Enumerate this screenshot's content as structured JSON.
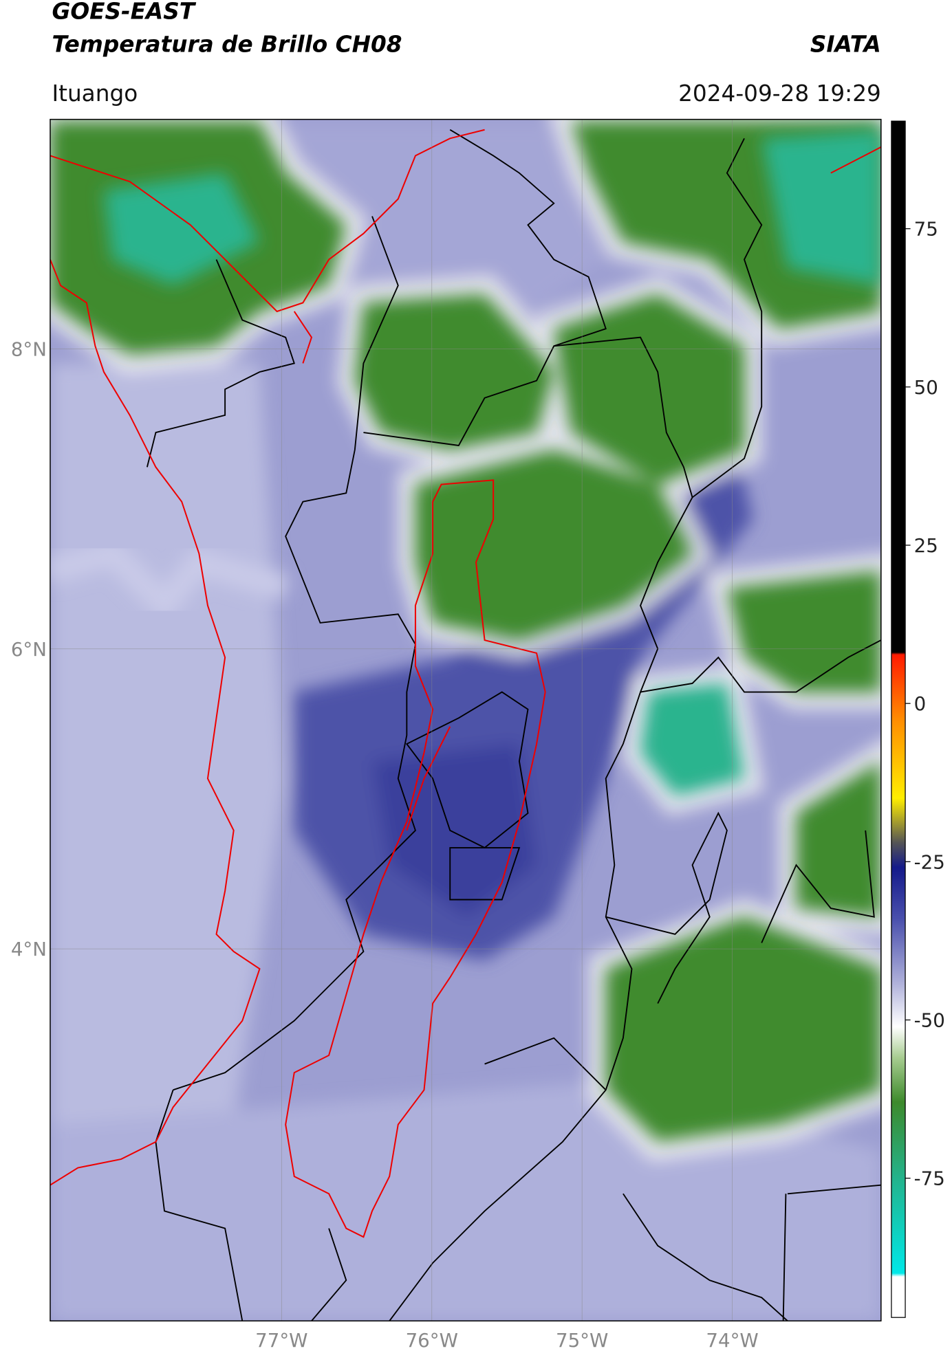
{
  "chart_data": {
    "type": "map",
    "title": "GOES-EAST",
    "subtitle": "Temperatura de Brillo CH08",
    "source": "SIATA",
    "region": "Ituango",
    "timestamp": "2024-09-28 19:29",
    "xlim": [
      -78.54,
      -73.01
    ],
    "ylim": [
      1.52,
      9.53
    ],
    "xticks": [
      {
        "value": -77,
        "label": "77°W"
      },
      {
        "value": -76,
        "label": "76°W"
      },
      {
        "value": -75,
        "label": "75°W"
      },
      {
        "value": -74,
        "label": "74°W"
      }
    ],
    "yticks": [
      {
        "value": 8,
        "label": "8°N"
      },
      {
        "value": 6,
        "label": "6°N"
      },
      {
        "value": 4,
        "label": "4°N"
      }
    ],
    "grid": true,
    "colorbar": {
      "lim": [
        -97,
        92
      ],
      "ticks": [
        75,
        50,
        25,
        0,
        -25,
        -50,
        -75
      ]
    }
  }
}
